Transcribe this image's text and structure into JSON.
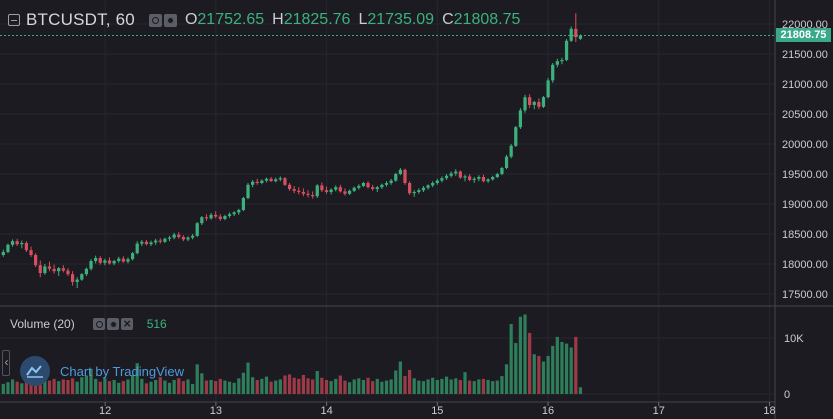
{
  "header": {
    "symbol": "BTCUSDT, 60",
    "open_label": "O",
    "open": "21752.65",
    "high_label": "H",
    "high": "21825.76",
    "low_label": "L",
    "low": "21735.09",
    "close_label": "C",
    "close": "21808.75",
    "icons": [
      "eye-icon",
      "gear-icon",
      "close-icon"
    ]
  },
  "volume_panel": {
    "label": "Volume (20)",
    "value": "516",
    "icons": [
      "eye-icon",
      "gear-icon",
      "close-icon"
    ]
  },
  "watermark": {
    "text": "Chart by TradingView"
  },
  "colors": {
    "background": "#1c1b21",
    "up": "#3bb27d",
    "down": "#d94e5f",
    "price_line": "#3aa88b",
    "text": "#c9ccd3",
    "link": "#4f9be0"
  },
  "chart_data": {
    "type": "candlestick",
    "interval": "60",
    "price_axis": {
      "ticks": [
        "22000.00",
        "21500.00",
        "21000.00",
        "20500.00",
        "20000.00",
        "19500.00",
        "19000.00",
        "18500.00",
        "18000.00",
        "17500.00"
      ],
      "range": [
        17350,
        22220
      ],
      "current_price": "21808.75"
    },
    "volume_axis": {
      "ticks": [
        "10K",
        "0"
      ],
      "range": [
        0,
        15500
      ]
    },
    "time_axis": {
      "ticks": [
        "12",
        "13",
        "14",
        "15",
        "16",
        "17",
        "18"
      ],
      "range": [
        11.05,
        18.05
      ]
    },
    "candles_t_start": 11.08,
    "candles_t_step": 0.0417,
    "candles": [
      [
        18150,
        18240,
        18120,
        18200
      ],
      [
        18200,
        18340,
        18180,
        18320
      ],
      [
        18320,
        18410,
        18290,
        18380
      ],
      [
        18380,
        18420,
        18300,
        18330
      ],
      [
        18330,
        18390,
        18260,
        18350
      ],
      [
        18350,
        18380,
        18200,
        18230
      ],
      [
        18230,
        18290,
        18120,
        18150
      ],
      [
        18150,
        18180,
        17950,
        17980
      ],
      [
        17980,
        18060,
        17780,
        17850
      ],
      [
        17850,
        18000,
        17820,
        17960
      ],
      [
        17960,
        18040,
        17880,
        17920
      ],
      [
        17920,
        17990,
        17840,
        17880
      ],
      [
        17880,
        17950,
        17800,
        17930
      ],
      [
        17930,
        17980,
        17860,
        17890
      ],
      [
        17890,
        17930,
        17800,
        17830
      ],
      [
        17830,
        17880,
        17640,
        17700
      ],
      [
        17700,
        17780,
        17600,
        17740
      ],
      [
        17740,
        17850,
        17720,
        17830
      ],
      [
        17830,
        17940,
        17800,
        17920
      ],
      [
        17920,
        18080,
        17890,
        18050
      ],
      [
        18050,
        18140,
        18010,
        18100
      ],
      [
        18100,
        18130,
        17990,
        18020
      ],
      [
        18020,
        18090,
        17980,
        18060
      ],
      [
        18060,
        18110,
        17990,
        18010
      ],
      [
        18010,
        18070,
        17980,
        18050
      ],
      [
        18050,
        18120,
        18020,
        18090
      ],
      [
        18090,
        18130,
        18020,
        18040
      ],
      [
        18040,
        18110,
        18010,
        18080
      ],
      [
        18080,
        18200,
        18060,
        18180
      ],
      [
        18180,
        18380,
        18160,
        18340
      ],
      [
        18340,
        18400,
        18300,
        18370
      ],
      [
        18370,
        18400,
        18310,
        18330
      ],
      [
        18330,
        18390,
        18300,
        18360
      ],
      [
        18360,
        18420,
        18320,
        18390
      ],
      [
        18390,
        18430,
        18340,
        18370
      ],
      [
        18370,
        18440,
        18350,
        18420
      ],
      [
        18420,
        18470,
        18380,
        18440
      ],
      [
        18440,
        18520,
        18410,
        18490
      ],
      [
        18490,
        18530,
        18420,
        18450
      ],
      [
        18450,
        18480,
        18380,
        18410
      ],
      [
        18410,
        18460,
        18380,
        18440
      ],
      [
        18440,
        18500,
        18410,
        18470
      ],
      [
        18470,
        18700,
        18450,
        18680
      ],
      [
        18680,
        18800,
        18650,
        18780
      ],
      [
        18780,
        18830,
        18720,
        18760
      ],
      [
        18760,
        18850,
        18740,
        18820
      ],
      [
        18820,
        18880,
        18760,
        18790
      ],
      [
        18790,
        18830,
        18720,
        18750
      ],
      [
        18750,
        18820,
        18730,
        18800
      ],
      [
        18800,
        18860,
        18770,
        18830
      ],
      [
        18830,
        18880,
        18800,
        18860
      ],
      [
        18860,
        18920,
        18820,
        18900
      ],
      [
        18900,
        19120,
        18880,
        19100
      ],
      [
        19100,
        19350,
        19080,
        19320
      ],
      [
        19320,
        19400,
        19280,
        19370
      ],
      [
        19370,
        19420,
        19320,
        19350
      ],
      [
        19350,
        19410,
        19330,
        19390
      ],
      [
        19390,
        19440,
        19360,
        19420
      ],
      [
        19420,
        19450,
        19370,
        19380
      ],
      [
        19380,
        19440,
        19360,
        19410
      ],
      [
        19410,
        19460,
        19380,
        19430
      ],
      [
        19430,
        19450,
        19300,
        19320
      ],
      [
        19320,
        19350,
        19220,
        19250
      ],
      [
        19250,
        19300,
        19180,
        19220
      ],
      [
        19220,
        19280,
        19160,
        19200
      ],
      [
        19200,
        19260,
        19130,
        19170
      ],
      [
        19170,
        19230,
        19110,
        19150
      ],
      [
        19150,
        19210,
        19090,
        19130
      ],
      [
        19130,
        19330,
        19100,
        19310
      ],
      [
        19310,
        19360,
        19200,
        19230
      ],
      [
        19230,
        19290,
        19170,
        19200
      ],
      [
        19200,
        19260,
        19160,
        19240
      ],
      [
        19240,
        19310,
        19210,
        19280
      ],
      [
        19280,
        19320,
        19190,
        19210
      ],
      [
        19210,
        19260,
        19140,
        19170
      ],
      [
        19170,
        19240,
        19150,
        19220
      ],
      [
        19220,
        19290,
        19200,
        19270
      ],
      [
        19270,
        19330,
        19240,
        19300
      ],
      [
        19300,
        19370,
        19280,
        19350
      ],
      [
        19350,
        19380,
        19260,
        19280
      ],
      [
        19280,
        19320,
        19220,
        19250
      ],
      [
        19250,
        19300,
        19200,
        19280
      ],
      [
        19280,
        19340,
        19250,
        19320
      ],
      [
        19320,
        19380,
        19290,
        19350
      ],
      [
        19350,
        19420,
        19320,
        19390
      ],
      [
        19390,
        19520,
        19370,
        19500
      ],
      [
        19500,
        19600,
        19480,
        19570
      ],
      [
        19570,
        19590,
        19320,
        19350
      ],
      [
        19350,
        19380,
        19150,
        19180
      ],
      [
        19180,
        19230,
        19120,
        19200
      ],
      [
        19200,
        19260,
        19170,
        19230
      ],
      [
        19230,
        19300,
        19200,
        19270
      ],
      [
        19270,
        19330,
        19240,
        19310
      ],
      [
        19310,
        19380,
        19280,
        19350
      ],
      [
        19350,
        19420,
        19320,
        19390
      ],
      [
        19390,
        19460,
        19360,
        19430
      ],
      [
        19430,
        19500,
        19400,
        19470
      ],
      [
        19470,
        19540,
        19440,
        19510
      ],
      [
        19510,
        19580,
        19470,
        19540
      ],
      [
        19540,
        19560,
        19420,
        19440
      ],
      [
        19440,
        19490,
        19380,
        19460
      ],
      [
        19460,
        19500,
        19380,
        19400
      ],
      [
        19400,
        19450,
        19350,
        19420
      ],
      [
        19420,
        19480,
        19380,
        19450
      ],
      [
        19450,
        19490,
        19360,
        19380
      ],
      [
        19380,
        19430,
        19350,
        19410
      ],
      [
        19410,
        19470,
        19390,
        19450
      ],
      [
        19450,
        19520,
        19430,
        19500
      ],
      [
        19500,
        19620,
        19480,
        19600
      ],
      [
        19600,
        19820,
        19580,
        19790
      ],
      [
        19790,
        20000,
        19760,
        19970
      ],
      [
        19970,
        20300,
        19950,
        20280
      ],
      [
        20280,
        20600,
        20250,
        20560
      ],
      [
        20560,
        20820,
        20520,
        20780
      ],
      [
        20780,
        20830,
        20600,
        20650
      ],
      [
        20650,
        20720,
        20580,
        20700
      ],
      [
        20700,
        20760,
        20580,
        20620
      ],
      [
        20620,
        20800,
        20600,
        20780
      ],
      [
        20780,
        21100,
        20760,
        21060
      ],
      [
        21060,
        21350,
        21020,
        21320
      ],
      [
        21320,
        21420,
        21280,
        21380
      ],
      [
        21380,
        21440,
        21330,
        21400
      ],
      [
        21400,
        21750,
        21380,
        21720
      ],
      [
        21720,
        21960,
        21700,
        21920
      ],
      [
        21920,
        22180,
        21700,
        21780
      ],
      [
        21752.65,
        21825.76,
        21735.09,
        21808.75
      ]
    ],
    "volumes": [
      1800,
      2100,
      2600,
      2200,
      1900,
      3100,
      3600,
      4200,
      2500,
      2900,
      2400,
      2700,
      2300,
      2600,
      2500,
      2800,
      2200,
      3000,
      3300,
      4500,
      2700,
      2200,
      2800,
      2300,
      2500,
      2000,
      2300,
      2600,
      3400,
      5500,
      2700,
      1900,
      2200,
      2500,
      3000,
      2400,
      2000,
      2500,
      2800,
      2300,
      2600,
      1800,
      5300,
      3700,
      2400,
      2500,
      2300,
      2700,
      2400,
      2200,
      2000,
      2800,
      3800,
      5600,
      3000,
      2500,
      2700,
      3100,
      2200,
      2400,
      2600,
      3300,
      3500,
      2900,
      2700,
      3400,
      2800,
      2600,
      4100,
      2900,
      2500,
      2300,
      2700,
      3300,
      2400,
      2100,
      2600,
      2800,
      2500,
      2900,
      2300,
      2700,
      2200,
      2400,
      2600,
      4200,
      5800,
      3200,
      4300,
      2800,
      2400,
      2300,
      2600,
      2900,
      2500,
      2700,
      3100,
      2600,
      2800,
      2500,
      3900,
      2400,
      2300,
      2600,
      2700,
      2500,
      2300,
      2400,
      3200,
      5300,
      12500,
      9100,
      13800,
      14200,
      10900,
      7100,
      6800,
      5800,
      6800,
      8600,
      10200,
      9300,
      9000,
      8300,
      10200,
      1200
    ]
  }
}
